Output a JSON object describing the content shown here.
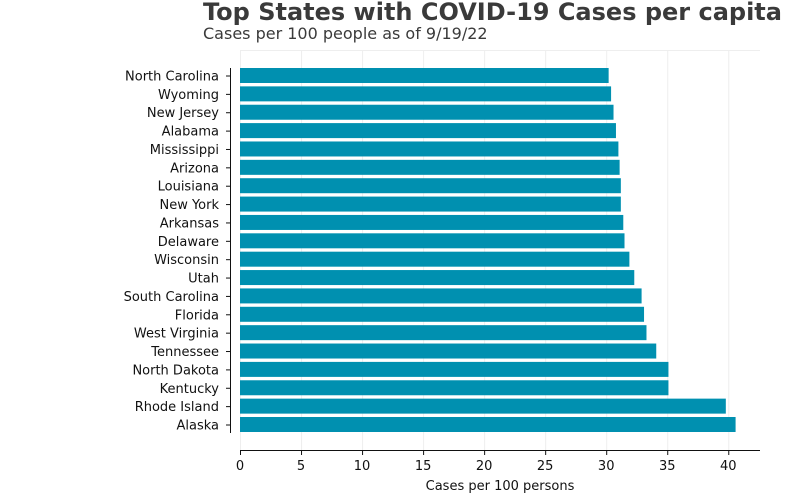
{
  "chart_data": {
    "type": "bar",
    "orientation": "horizontal",
    "title": "Top States with COVID-19 Cases per capita",
    "subtitle": "Cases per 100 people as of 9/19/22",
    "xlabel": "Cases per 100 persons",
    "ylabel": "",
    "xlim": [
      0,
      42.6
    ],
    "xticks": [
      0,
      5,
      10,
      15,
      20,
      25,
      30,
      35,
      40
    ],
    "grid": "x",
    "legend": "none",
    "bar_color": "#0090b0",
    "categories": [
      "North Carolina",
      "Wyoming",
      "New Jersey",
      "Alabama",
      "Mississippi",
      "Arizona",
      "Louisiana",
      "New York",
      "Arkansas",
      "Delaware",
      "Wisconsin",
      "Utah",
      "South Carolina",
      "Florida",
      "West Virginia",
      "Tennessee",
      "North Dakota",
      "Kentucky",
      "Rhode Island",
      "Alaska"
    ],
    "values": [
      30.2,
      30.4,
      30.6,
      30.8,
      31.0,
      31.1,
      31.2,
      31.2,
      31.4,
      31.5,
      31.9,
      32.3,
      32.9,
      33.1,
      33.3,
      34.1,
      35.1,
      35.1,
      39.8,
      40.6
    ]
  }
}
